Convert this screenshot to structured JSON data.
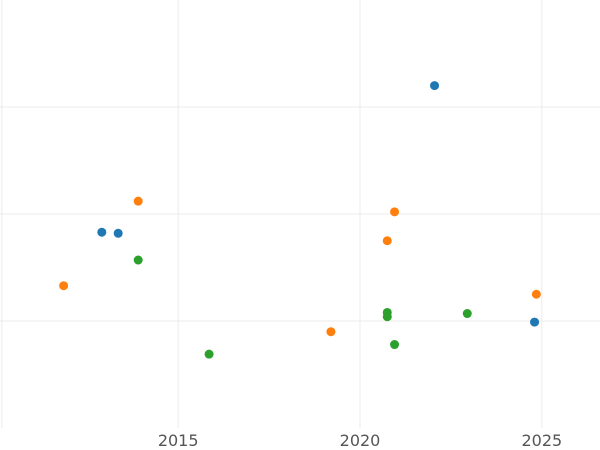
{
  "chart_data": {
    "type": "scatter",
    "title": "",
    "xlabel": "",
    "ylabel": "",
    "xlim": [
      2010.1,
      2026.6
    ],
    "ylim": [
      -1.0,
      3.0
    ],
    "x_ticks": [
      2015,
      2020,
      2025
    ],
    "y_gridlines": [
      0,
      1,
      2
    ],
    "grid": true,
    "legend": "none",
    "series": [
      {
        "color": "#1f77b4",
        "points": [
          {
            "x": 2022.05,
            "y": 2.2
          },
          {
            "x": 2012.9,
            "y": 0.83
          },
          {
            "x": 2013.35,
            "y": 0.82
          },
          {
            "x": 2024.8,
            "y": -0.01
          }
        ]
      },
      {
        "color": "#ff7f0e",
        "points": [
          {
            "x": 2013.9,
            "y": 1.12
          },
          {
            "x": 2020.95,
            "y": 1.02
          },
          {
            "x": 2020.75,
            "y": 0.75
          },
          {
            "x": 2011.85,
            "y": 0.33
          },
          {
            "x": 2024.85,
            "y": 0.25
          },
          {
            "x": 2019.2,
            "y": -0.1
          }
        ]
      },
      {
        "color": "#2ca02c",
        "points": [
          {
            "x": 2013.9,
            "y": 0.57
          },
          {
            "x": 2020.75,
            "y": 0.08
          },
          {
            "x": 2020.75,
            "y": 0.04
          },
          {
            "x": 2022.95,
            "y": 0.07
          },
          {
            "x": 2020.95,
            "y": -0.22
          },
          {
            "x": 2015.85,
            "y": -0.31
          }
        ]
      }
    ]
  }
}
